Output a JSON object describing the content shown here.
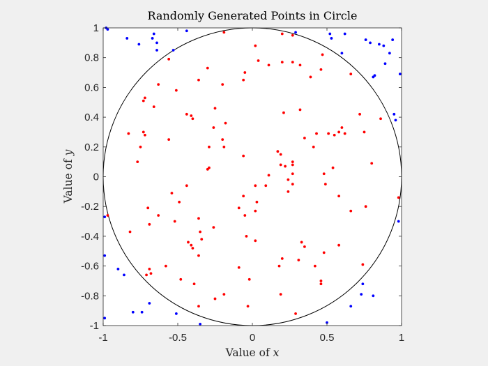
{
  "chart_data": {
    "type": "scatter",
    "title": "Randomly Generated Points in Circle",
    "xlabel": {
      "prefix": "Value of ",
      "variable": "x"
    },
    "ylabel": {
      "prefix": "Value of ",
      "variable": "y"
    },
    "xlim": [
      -1,
      1
    ],
    "ylim": [
      -1,
      1
    ],
    "xticks": [
      -1,
      -0.5,
      0,
      0.5,
      1
    ],
    "xtick_labels": [
      "-1",
      "-0.5",
      "0",
      "0.5",
      "1"
    ],
    "yticks": [
      -1,
      -0.8,
      -0.6,
      -0.4,
      -0.2,
      0,
      0.2,
      0.4,
      0.6,
      0.8,
      1
    ],
    "ytick_labels": [
      "-1",
      "-0.8",
      "-0.6",
      "-0.4",
      "-0.2",
      "0",
      "0.2",
      "0.4",
      "0.6",
      "0.8",
      "1"
    ],
    "grid": false,
    "circle": {
      "center": [
        0,
        0
      ],
      "radius": 1,
      "color": "#000000"
    },
    "colors": {
      "inside": "#ff0000",
      "outside": "#0000ff",
      "axes_background": "#ffffff",
      "figure_background": "#f0f0f0"
    },
    "series": [
      {
        "color": "#ff0000",
        "points": [
          [
            -0.19,
            0.97
          ],
          [
            0.02,
            0.88
          ],
          [
            0.2,
            0.96
          ],
          [
            0.27,
            0.95
          ],
          [
            0.47,
            0.82
          ],
          [
            -0.56,
            0.79
          ],
          [
            0.04,
            0.78
          ],
          [
            0.11,
            0.75
          ],
          [
            0.2,
            0.77
          ],
          [
            0.27,
            0.77
          ],
          [
            0.32,
            0.75
          ],
          [
            0.46,
            0.72
          ],
          [
            -0.3,
            0.73
          ],
          [
            -0.05,
            0.7
          ],
          [
            -0.06,
            0.65
          ],
          [
            -0.36,
            0.65
          ],
          [
            -0.2,
            0.62
          ],
          [
            0.66,
            0.69
          ],
          [
            0.39,
            0.67
          ],
          [
            -0.63,
            0.62
          ],
          [
            -0.51,
            0.58
          ],
          [
            -0.72,
            0.53
          ],
          [
            -0.73,
            0.51
          ],
          [
            -0.66,
            0.47
          ],
          [
            -0.44,
            0.42
          ],
          [
            -0.41,
            0.41
          ],
          [
            -0.4,
            0.39
          ],
          [
            -0.25,
            0.46
          ],
          [
            0.32,
            0.45
          ],
          [
            0.21,
            0.43
          ],
          [
            0.86,
            0.39
          ],
          [
            0.72,
            0.42
          ],
          [
            -0.18,
            0.36
          ],
          [
            -0.26,
            0.33
          ],
          [
            -0.73,
            0.3
          ],
          [
            -0.72,
            0.28
          ],
          [
            -0.83,
            0.29
          ],
          [
            0.6,
            0.33
          ],
          [
            0.58,
            0.3
          ],
          [
            0.51,
            0.29
          ],
          [
            0.43,
            0.29
          ],
          [
            0.55,
            0.28
          ],
          [
            0.62,
            0.29
          ],
          [
            0.75,
            0.3
          ],
          [
            0.35,
            0.26
          ],
          [
            -0.2,
            0.25
          ],
          [
            -0.56,
            0.25
          ],
          [
            -0.75,
            0.2
          ],
          [
            -0.29,
            0.2
          ],
          [
            -0.19,
            0.2
          ],
          [
            0.41,
            0.2
          ],
          [
            0.17,
            0.17
          ],
          [
            0.19,
            0.15
          ],
          [
            0.27,
            0.1
          ],
          [
            -0.06,
            0.14
          ],
          [
            0.22,
            0.07
          ],
          [
            0.27,
            0.08
          ],
          [
            0.19,
            0.08
          ],
          [
            0.54,
            0.06
          ],
          [
            -0.29,
            0.06
          ],
          [
            -0.3,
            0.05
          ],
          [
            -0.77,
            0.1
          ],
          [
            0.8,
            0.09
          ],
          [
            0.48,
            0.02
          ],
          [
            0.27,
            0.02
          ],
          [
            0.24,
            -0.02
          ],
          [
            0.11,
            0.01
          ],
          [
            0.27,
            -0.05
          ],
          [
            0.49,
            -0.05
          ],
          [
            0.02,
            -0.06
          ],
          [
            0.09,
            -0.06
          ],
          [
            0.24,
            -0.1
          ],
          [
            -0.06,
            -0.13
          ],
          [
            -0.54,
            -0.11
          ],
          [
            -0.44,
            -0.06
          ],
          [
            0.58,
            -0.13
          ],
          [
            0.98,
            -0.14
          ],
          [
            0.03,
            -0.17
          ],
          [
            -0.49,
            -0.17
          ],
          [
            -0.09,
            -0.21
          ],
          [
            0.02,
            -0.23
          ],
          [
            0.76,
            -0.2
          ],
          [
            -0.7,
            -0.21
          ],
          [
            -0.63,
            -0.26
          ],
          [
            -0.05,
            -0.26
          ],
          [
            -0.36,
            -0.28
          ],
          [
            0.66,
            -0.23
          ],
          [
            -0.97,
            -0.26
          ],
          [
            -0.52,
            -0.3
          ],
          [
            -0.69,
            -0.32
          ],
          [
            -0.26,
            -0.34
          ],
          [
            -0.35,
            -0.37
          ],
          [
            -0.82,
            -0.37
          ],
          [
            -0.04,
            -0.4
          ],
          [
            0.02,
            -0.43
          ],
          [
            -0.34,
            -0.42
          ],
          [
            -0.43,
            -0.44
          ],
          [
            -0.41,
            -0.46
          ],
          [
            0.33,
            -0.44
          ],
          [
            0.35,
            -0.47
          ],
          [
            0.58,
            -0.46
          ],
          [
            -0.4,
            -0.48
          ],
          [
            0.48,
            -0.51
          ],
          [
            -0.36,
            -0.53
          ],
          [
            0.2,
            -0.55
          ],
          [
            0.31,
            -0.56
          ],
          [
            0.18,
            -0.6
          ],
          [
            -0.58,
            -0.6
          ],
          [
            -0.09,
            -0.61
          ],
          [
            0.42,
            -0.6
          ],
          [
            0.74,
            -0.59
          ],
          [
            -0.69,
            -0.62
          ],
          [
            -0.71,
            -0.66
          ],
          [
            -0.68,
            -0.65
          ],
          [
            -0.48,
            -0.69
          ],
          [
            -0.02,
            -0.69
          ],
          [
            0.46,
            -0.7
          ],
          [
            0.46,
            -0.72
          ],
          [
            -0.39,
            -0.72
          ],
          [
            0.19,
            -0.79
          ],
          [
            -0.19,
            -0.79
          ],
          [
            -0.25,
            -0.82
          ],
          [
            -0.36,
            -0.87
          ],
          [
            -0.03,
            -0.87
          ],
          [
            0.29,
            -0.92
          ]
        ]
      },
      {
        "color": "#0000ff",
        "points": [
          [
            -0.97,
            0.99
          ],
          [
            -0.44,
            0.98
          ],
          [
            -0.66,
            0.96
          ],
          [
            -0.67,
            0.93
          ],
          [
            -0.84,
            0.93
          ],
          [
            -0.76,
            0.89
          ],
          [
            -0.64,
            0.85
          ],
          [
            -0.53,
            0.85
          ],
          [
            -0.64,
            0.9
          ],
          [
            -0.98,
            1.0
          ],
          [
            0.29,
            0.97
          ],
          [
            0.52,
            0.96
          ],
          [
            0.53,
            0.93
          ],
          [
            0.62,
            0.96
          ],
          [
            0.76,
            0.92
          ],
          [
            0.94,
            0.92
          ],
          [
            0.79,
            0.9
          ],
          [
            0.88,
            0.88
          ],
          [
            0.85,
            0.89
          ],
          [
            0.92,
            0.83
          ],
          [
            0.6,
            0.83
          ],
          [
            0.89,
            0.76
          ],
          [
            0.82,
            0.68
          ],
          [
            0.81,
            0.67
          ],
          [
            0.99,
            0.69
          ],
          [
            0.95,
            0.42
          ],
          [
            0.96,
            0.38
          ],
          [
            -0.99,
            -0.27
          ],
          [
            0.98,
            -0.3
          ],
          [
            -0.99,
            -0.53
          ],
          [
            -0.9,
            -0.62
          ],
          [
            -0.86,
            -0.66
          ],
          [
            0.74,
            -0.72
          ],
          [
            0.73,
            -0.79
          ],
          [
            0.81,
            -0.8
          ],
          [
            -0.69,
            -0.85
          ],
          [
            0.66,
            -0.87
          ],
          [
            -0.8,
            -0.91
          ],
          [
            -0.74,
            -0.91
          ],
          [
            -0.51,
            -0.92
          ],
          [
            -0.99,
            -0.95
          ],
          [
            -0.35,
            -0.99
          ],
          [
            0.5,
            -0.98
          ]
        ]
      }
    ]
  }
}
